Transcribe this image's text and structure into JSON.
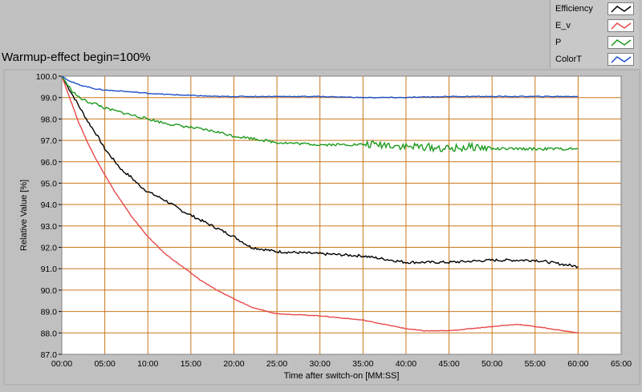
{
  "chart_data": {
    "type": "line",
    "title": "Warmup-effect begin=100%",
    "xlabel": "Time after switch-on [MM:SS]",
    "ylabel": "Relative Value [%]",
    "xlim": [
      0,
      65
    ],
    "ylim": [
      87.0,
      100.0
    ],
    "x_ticks": [
      "00:00",
      "05:00",
      "10:00",
      "15:00",
      "20:00",
      "25:00",
      "30:00",
      "35:00",
      "40:00",
      "45:00",
      "50:00",
      "55:00",
      "60:00",
      "65:00"
    ],
    "y_ticks": [
      "87.0",
      "88.0",
      "89.0",
      "90.0",
      "91.0",
      "92.0",
      "93.0",
      "94.0",
      "95.0",
      "96.0",
      "97.0",
      "98.0",
      "99.0",
      "100.0"
    ],
    "grid": true,
    "legend_position": "top-right",
    "series": [
      {
        "name": "Efficiency",
        "color": "#000000",
        "x": [
          0,
          1,
          2,
          3,
          4,
          5,
          6,
          7,
          8,
          9,
          10,
          12,
          14,
          16,
          18,
          20,
          22,
          25,
          30,
          35,
          40,
          45,
          50,
          55,
          60
        ],
        "y": [
          100.0,
          99.3,
          98.6,
          97.9,
          97.3,
          96.6,
          96.1,
          95.6,
          95.3,
          94.9,
          94.6,
          94.2,
          93.7,
          93.3,
          92.9,
          92.5,
          92.0,
          91.8,
          91.7,
          91.6,
          91.3,
          91.3,
          91.4,
          91.4,
          91.1
        ]
      },
      {
        "name": "E_v",
        "color": "#e84848",
        "x": [
          0,
          1,
          2,
          3,
          4,
          5,
          6,
          7,
          8,
          9,
          10,
          12,
          14,
          16,
          18,
          20,
          22,
          25,
          30,
          35,
          40,
          42,
          45,
          50,
          53,
          55,
          60
        ],
        "y": [
          100.0,
          98.9,
          97.8,
          96.9,
          96.1,
          95.4,
          94.7,
          94.1,
          93.5,
          93.0,
          92.5,
          91.7,
          91.1,
          90.5,
          90.0,
          89.6,
          89.2,
          88.9,
          88.8,
          88.6,
          88.2,
          88.1,
          88.1,
          88.3,
          88.4,
          88.3,
          88.0
        ]
      },
      {
        "name": "P",
        "color": "#1e9a1e",
        "x": [
          0,
          1,
          2,
          3,
          4,
          5,
          7,
          10,
          12,
          15,
          18,
          20,
          22,
          25,
          30,
          35,
          38,
          40,
          42,
          45,
          48,
          50,
          55,
          60
        ],
        "y": [
          100.0,
          99.4,
          99.0,
          98.8,
          98.7,
          98.5,
          98.3,
          98.0,
          97.8,
          97.6,
          97.4,
          97.2,
          97.1,
          96.9,
          96.8,
          96.8,
          96.8,
          96.7,
          96.7,
          96.6,
          96.7,
          96.6,
          96.6,
          96.6
        ]
      },
      {
        "name": "ColorT",
        "color": "#1c4fc8",
        "x": [
          0,
          1,
          2,
          3,
          4,
          5,
          7,
          10,
          12,
          15,
          18,
          20,
          25,
          30,
          35,
          40,
          45,
          50,
          55,
          60
        ],
        "y": [
          100.0,
          99.75,
          99.6,
          99.5,
          99.4,
          99.35,
          99.3,
          99.2,
          99.15,
          99.1,
          99.05,
          99.05,
          99.05,
          99.05,
          99.0,
          99.0,
          99.05,
          99.05,
          99.05,
          99.05
        ]
      }
    ]
  }
}
